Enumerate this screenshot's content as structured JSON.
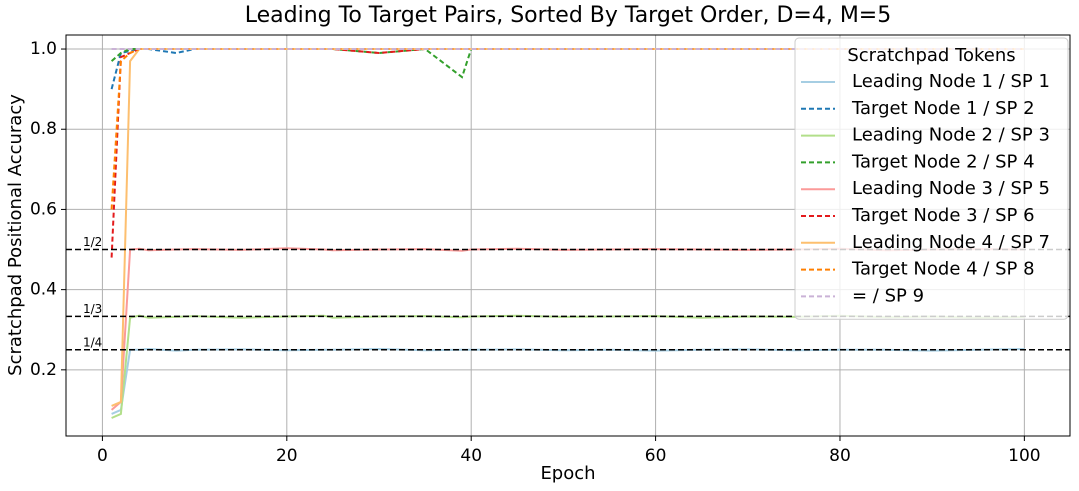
{
  "chart_data": {
    "type": "line",
    "title": "Leading To Target Pairs, Sorted By Target Order, D=4, M=5",
    "x_label": "Epoch",
    "y_label": "Scratchpad Positional Accuracy",
    "xlim": [
      -3.95,
      104.95
    ],
    "ylim": [
      0.035,
      1.035
    ],
    "xticks": [
      0,
      20,
      40,
      60,
      80,
      100
    ],
    "yticks": [
      0.2,
      0.4,
      0.6,
      0.8,
      {
        "value": 1,
        "label": "1.0"
      }
    ],
    "grid": true,
    "legend_title": "Scratchpad Tokens",
    "legend_position": "upper-right",
    "reference_lines": [
      {
        "value": 0.5,
        "label": "1/2"
      },
      {
        "value": 0.3333,
        "label": "1/3"
      },
      {
        "value": 0.25,
        "label": "1/4"
      }
    ],
    "x": [
      1,
      2,
      3,
      4,
      5,
      8,
      10,
      15,
      20,
      24,
      25,
      30,
      35,
      39,
      40,
      45,
      50,
      55,
      60,
      65,
      70,
      75,
      80,
      85,
      90,
      95,
      100
    ],
    "series": [
      {
        "name": "Leading Node 1 / SP 1",
        "color": "#a6cee3",
        "style": "solid",
        "values": [
          0.09,
          0.1,
          0.25,
          0.25,
          0.252,
          0.248,
          0.25,
          0.251,
          0.249,
          0.25,
          0.25,
          0.252,
          0.249,
          0.25,
          0.25,
          0.251,
          0.249,
          0.25,
          0.248,
          0.25,
          0.251,
          0.249,
          0.25,
          0.25,
          0.248,
          0.25,
          0.252
        ]
      },
      {
        "name": "Target Node 1 / SP 2",
        "color": "#1f78b4",
        "style": "dashed",
        "values": [
          0.9,
          0.99,
          0.995,
          1,
          1,
          0.99,
          1,
          1,
          1,
          1,
          1,
          1,
          1,
          1,
          1,
          1,
          1,
          1,
          1,
          1,
          1,
          1,
          1,
          1,
          1,
          1,
          1
        ]
      },
      {
        "name": "Leading Node 2 / SP 3",
        "color": "#b2df8a",
        "style": "solid",
        "values": [
          0.08,
          0.09,
          0.33,
          0.335,
          0.33,
          0.332,
          0.334,
          0.33,
          0.333,
          0.335,
          0.33,
          0.333,
          0.334,
          0.331,
          0.333,
          0.335,
          0.332,
          0.333,
          0.334,
          0.33,
          0.333,
          0.332,
          0.335,
          0.331,
          0.333,
          0.33,
          0.332
        ]
      },
      {
        "name": "Target Node 2 / SP 4",
        "color": "#33a02c",
        "style": "dashed",
        "values": [
          0.97,
          0.99,
          1,
          1,
          1,
          1,
          1,
          1,
          1,
          1,
          1,
          0.99,
          1,
          0.93,
          1,
          1,
          1,
          1,
          1,
          1,
          1,
          1,
          1,
          1,
          1,
          1,
          1
        ]
      },
      {
        "name": "Leading Node 3 / SP 5",
        "color": "#fb9a99",
        "style": "solid",
        "values": [
          0.1,
          0.12,
          0.5,
          0.502,
          0.498,
          0.5,
          0.501,
          0.499,
          0.503,
          0.5,
          0.498,
          0.5,
          0.501,
          0.497,
          0.5,
          0.502,
          0.499,
          0.5,
          0.501,
          0.5,
          0.499,
          0.5,
          0.502,
          0.498,
          0.5,
          0.501,
          0.5
        ]
      },
      {
        "name": "Target Node 3 / SP 6",
        "color": "#e31a1c",
        "style": "dashed",
        "values": [
          0.48,
          0.98,
          0.99,
          1,
          1,
          1,
          1,
          1,
          1,
          1,
          1,
          0.99,
          1,
          1,
          1,
          1,
          1,
          1,
          1,
          1,
          1,
          1,
          1,
          1,
          1,
          1,
          1
        ]
      },
      {
        "name": "Leading Node 4 / SP 7",
        "color": "#fdbf6f",
        "style": "solid",
        "values": [
          0.11,
          0.12,
          0.97,
          1,
          1,
          1,
          1,
          1,
          1,
          1,
          1,
          1,
          1,
          1,
          1,
          1,
          1,
          1,
          1,
          1,
          1,
          1,
          1,
          1,
          1,
          1,
          1
        ]
      },
      {
        "name": "Target Node 4 / SP 8",
        "color": "#ff7f00",
        "style": "dashed",
        "values": [
          0.6,
          0.97,
          0.99,
          1,
          1,
          1,
          1,
          1,
          1,
          1,
          1,
          1,
          1,
          1,
          1,
          1,
          1,
          1,
          1,
          1,
          1,
          1,
          1,
          1,
          1,
          1,
          1
        ]
      },
      {
        "name": "= / SP 9",
        "color": "#cab2d6",
        "style": "dashed",
        "values": [
          1,
          1,
          1,
          1,
          1,
          1,
          1,
          1,
          1,
          1,
          1,
          1,
          1,
          1,
          1,
          1,
          1,
          1,
          1,
          1,
          1,
          1,
          1,
          1,
          1,
          1,
          1
        ]
      }
    ]
  }
}
